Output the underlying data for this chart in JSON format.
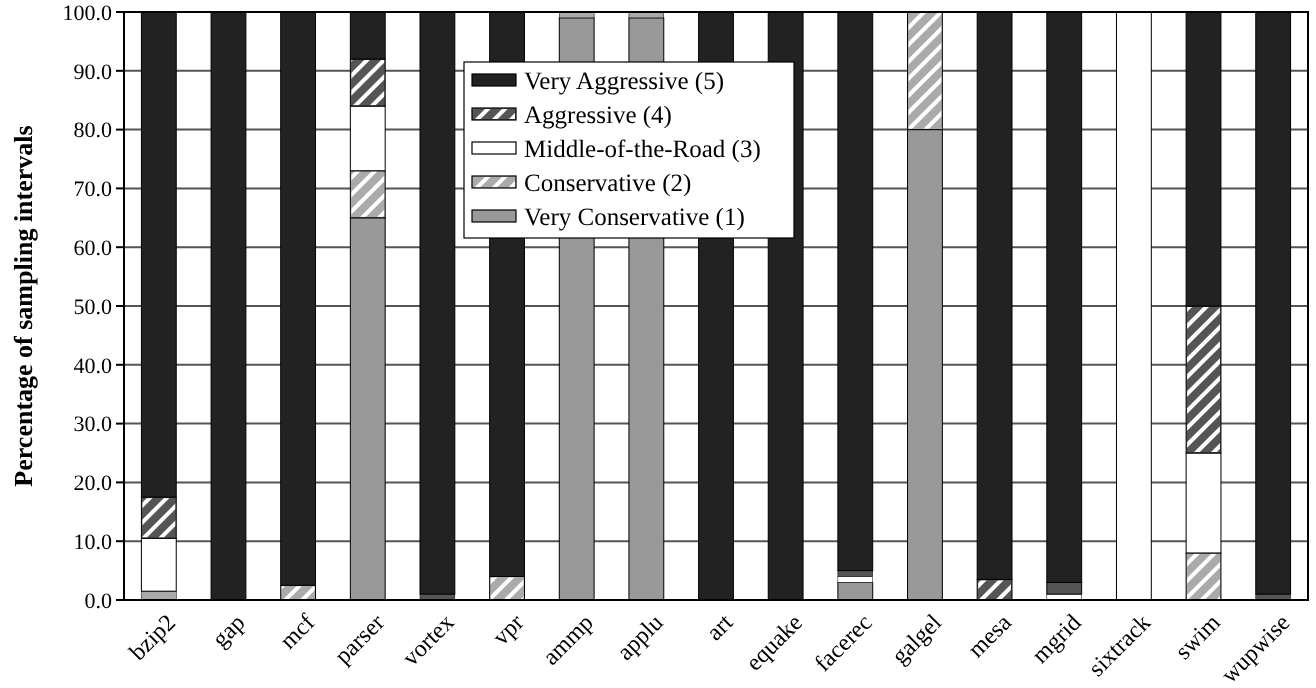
{
  "chart_data": {
    "type": "bar",
    "stacked": true,
    "ylabel": "Percentage of sampling intervals",
    "categories": [
      "bzip2",
      "gap",
      "mcf",
      "parser",
      "vortex",
      "vpr",
      "ammp",
      "applu",
      "art",
      "equake",
      "facerec",
      "galgel",
      "mesa",
      "mgrid",
      "sixtrack",
      "swim",
      "wupwise"
    ],
    "series": [
      {
        "name": "Very Conservative (1)",
        "color": "#999999",
        "values": [
          0,
          0,
          0,
          65,
          0,
          0,
          99,
          99,
          0,
          0,
          3,
          80,
          0,
          0,
          0,
          0,
          0
        ]
      },
      {
        "name": "Conservative (2)",
        "color": "#aaaaaa",
        "values": [
          1.5,
          0,
          2.5,
          8,
          0,
          4,
          1,
          1,
          0,
          0,
          0,
          20,
          0,
          0,
          0,
          8,
          0
        ]
      },
      {
        "name": "Middle-of-the-Road (3)",
        "color": "#ffffff",
        "values": [
          9,
          0,
          0,
          11,
          0,
          0,
          0,
          0,
          0,
          0,
          1,
          0,
          0,
          1,
          100,
          17,
          0
        ]
      },
      {
        "name": "Aggressive (4)",
        "color": "#555555",
        "values": [
          7,
          0,
          0,
          8,
          1,
          0,
          0,
          0,
          0,
          0,
          1,
          0,
          3.5,
          2,
          0,
          25,
          1
        ]
      },
      {
        "name": "Very Aggressive (5)",
        "color": "#222222",
        "values": [
          82.5,
          100,
          97.5,
          8,
          99,
          96,
          0,
          0,
          100,
          100,
          95,
          0,
          96.5,
          97,
          0,
          50,
          99
        ]
      }
    ],
    "ylim": [
      0,
      100
    ],
    "yticks": [
      {
        "value": 0,
        "label": "0.0"
      },
      {
        "value": 10,
        "label": "10.0"
      },
      {
        "value": 20,
        "label": "20.0"
      },
      {
        "value": 30,
        "label": "30.0"
      },
      {
        "value": 40,
        "label": "40.0"
      },
      {
        "value": 50,
        "label": "50.0"
      },
      {
        "value": 60,
        "label": "60.0"
      },
      {
        "value": 70,
        "label": "70.0"
      },
      {
        "value": 80,
        "label": "80.0"
      },
      {
        "value": 90,
        "label": "90.0"
      },
      {
        "value": 100,
        "label": "100.0"
      }
    ],
    "grid": "y",
    "legend": "top"
  }
}
